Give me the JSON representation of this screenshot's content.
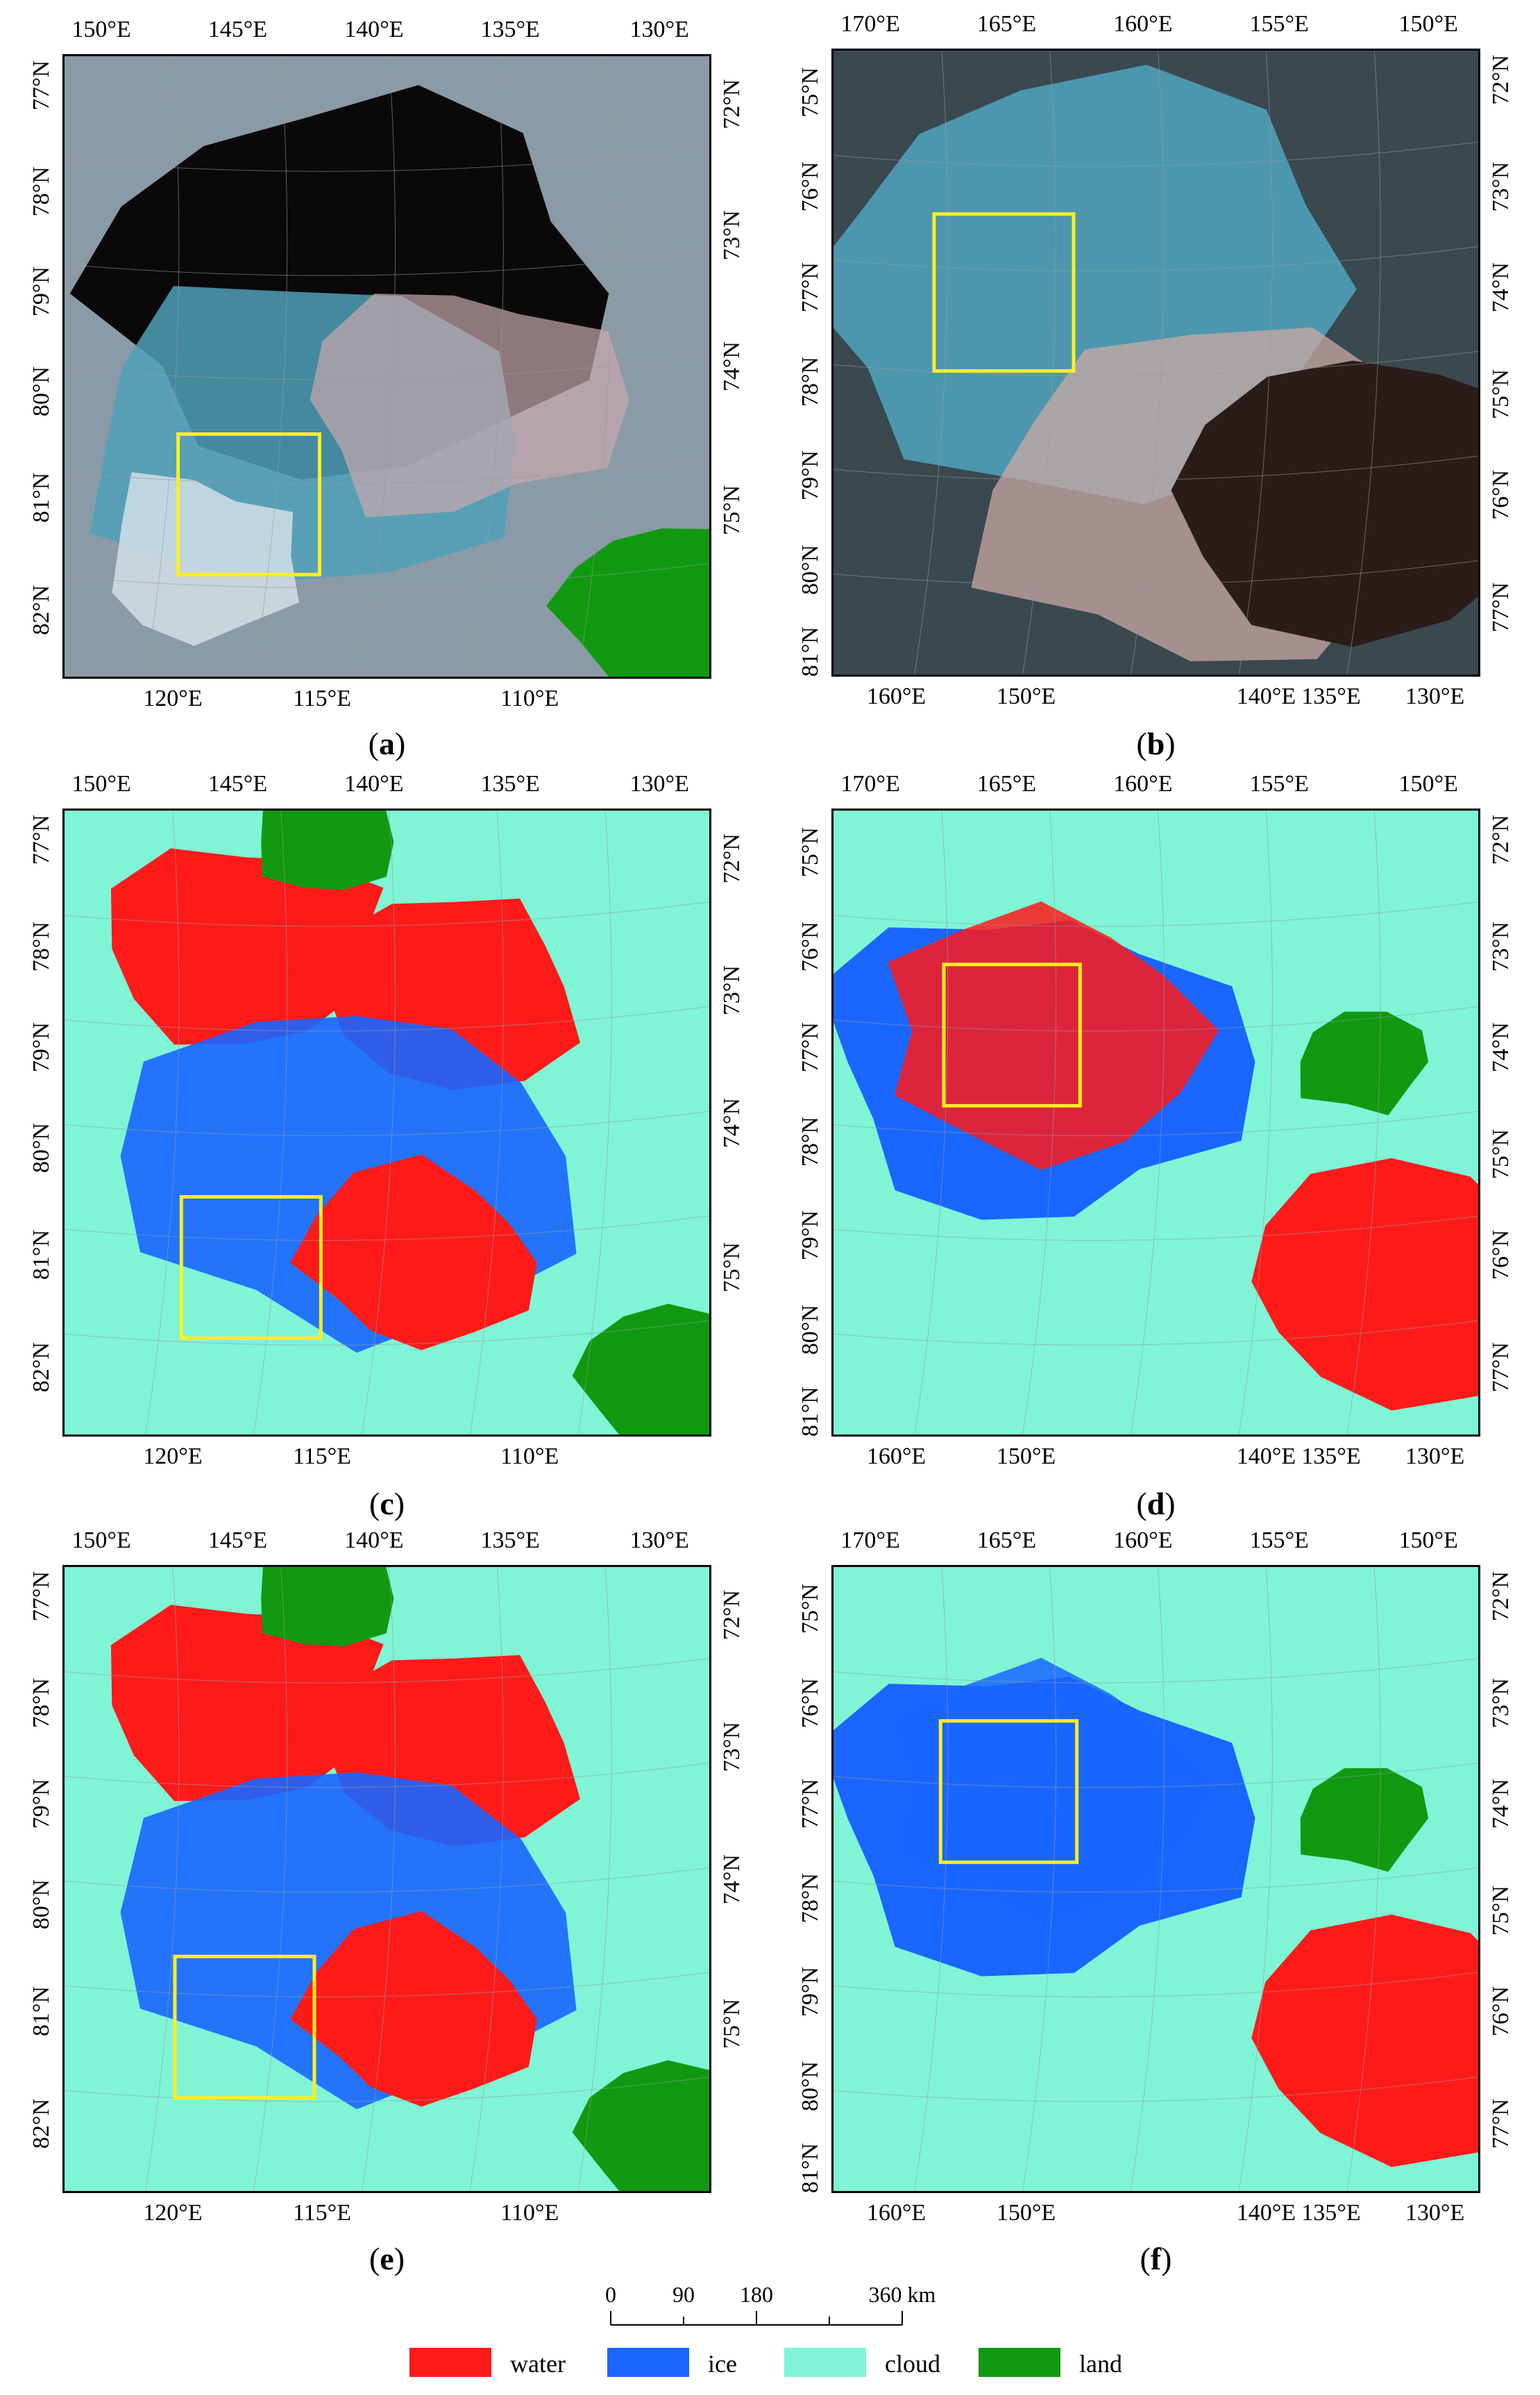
{
  "panels": [
    {
      "id": "a",
      "caption": "a",
      "type": "false-color",
      "top_labels": [
        "150°E",
        "145°E",
        "140°E",
        "135°E",
        "130°E"
      ],
      "bottom_labels": [
        "120°E",
        "115°E",
        "110°E"
      ],
      "left_labels": [
        "77°N",
        "78°N",
        "79°N",
        "80°N",
        "81°N",
        "82°N"
      ],
      "right_labels": [
        "72°N",
        "73°N",
        "74°N",
        "75°N"
      ]
    },
    {
      "id": "b",
      "caption": "b",
      "type": "false-color",
      "top_labels": [
        "170°E",
        "165°E",
        "160°E",
        "155°E",
        "150°E"
      ],
      "bottom_labels": [
        "160°E",
        "150°E",
        "140°E",
        "135°E",
        "130°E"
      ],
      "left_labels": [
        "75°N",
        "76°N",
        "77°N",
        "78°N",
        "79°N",
        "80°N",
        "81°N"
      ],
      "right_labels": [
        "72°N",
        "73°N",
        "74°N",
        "75°N",
        "76°N",
        "77°N"
      ]
    },
    {
      "id": "c",
      "caption": "c",
      "type": "classified",
      "top_labels": [
        "150°E",
        "145°E",
        "140°E",
        "135°E",
        "130°E"
      ],
      "bottom_labels": [
        "120°E",
        "115°E",
        "110°E"
      ],
      "left_labels": [
        "77°N",
        "78°N",
        "79°N",
        "80°N",
        "81°N",
        "82°N"
      ],
      "right_labels": [
        "72°N",
        "73°N",
        "74°N",
        "75°N"
      ]
    },
    {
      "id": "d",
      "caption": "d",
      "type": "classified",
      "top_labels": [
        "170°E",
        "165°E",
        "160°E",
        "155°E",
        "150°E"
      ],
      "bottom_labels": [
        "160°E",
        "150°E",
        "140°E",
        "135°E",
        "130°E"
      ],
      "left_labels": [
        "75°N",
        "76°N",
        "77°N",
        "78°N",
        "79°N",
        "80°N",
        "81°N"
      ],
      "right_labels": [
        "72°N",
        "73°N",
        "74°N",
        "75°N",
        "76°N",
        "77°N"
      ]
    },
    {
      "id": "e",
      "caption": "e",
      "type": "classified",
      "top_labels": [
        "150°E",
        "145°E",
        "140°E",
        "135°E",
        "130°E"
      ],
      "bottom_labels": [
        "120°E",
        "115°E",
        "110°E"
      ],
      "left_labels": [
        "77°N",
        "78°N",
        "79°N",
        "80°N",
        "81°N",
        "82°N"
      ],
      "right_labels": [
        "72°N",
        "73°N",
        "74°N",
        "75°N"
      ]
    },
    {
      "id": "f",
      "caption": "f",
      "type": "classified",
      "top_labels": [
        "170°E",
        "165°E",
        "160°E",
        "155°E",
        "150°E"
      ],
      "bottom_labels": [
        "160°E",
        "150°E",
        "140°E",
        "135°E",
        "130°E"
      ],
      "left_labels": [
        "75°N",
        "76°N",
        "77°N",
        "78°N",
        "79°N",
        "80°N",
        "81°N"
      ],
      "right_labels": [
        "72°N",
        "73°N",
        "74°N",
        "75°N",
        "76°N",
        "77°N"
      ]
    }
  ],
  "scale_bar": {
    "ticks": [
      "0",
      "90",
      "180",
      "360 km"
    ]
  },
  "legend": [
    {
      "label": "water",
      "color": "#ff1a1a"
    },
    {
      "label": "ice",
      "color": "#1a66ff"
    },
    {
      "label": "cloud",
      "color": "#7ff5d6"
    },
    {
      "label": "land",
      "color": "#119911"
    }
  ],
  "colors": {
    "water": "#ff1a1a",
    "ice": "#1a66ff",
    "cloud": "#7ff5d6",
    "land": "#119911",
    "highlight_box": "#ffee22",
    "dark_water": "#0a0808",
    "ice_false": "#4fa0b8"
  }
}
